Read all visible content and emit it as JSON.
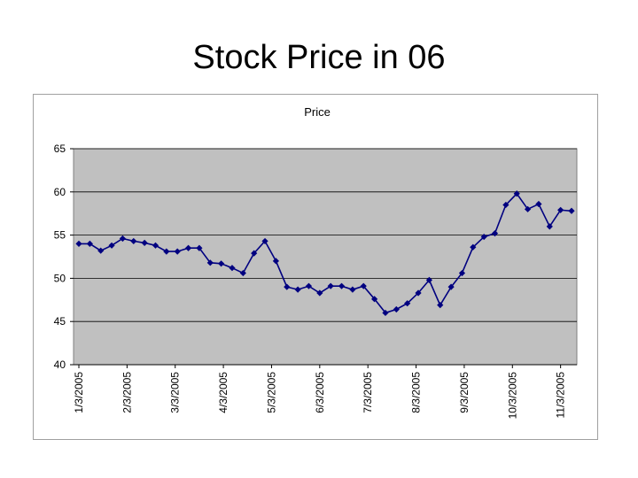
{
  "slide": {
    "title": "Stock Price in 06"
  },
  "colors": {
    "plot_bg": "#c0c0c0",
    "line": "#000080",
    "grid": "#000000"
  },
  "chart_data": {
    "type": "line",
    "title": "Price",
    "xlabel": "",
    "ylabel": "",
    "ylim": [
      40,
      65
    ],
    "yticks": [
      40,
      45,
      50,
      55,
      60,
      65
    ],
    "grid": true,
    "legend": "none",
    "xtick_labels": [
      "1/3/2005",
      "2/3/2005",
      "3/3/2005",
      "4/3/2005",
      "5/3/2005",
      "6/3/2005",
      "7/3/2005",
      "8/3/2005",
      "9/3/2005",
      "10/3/2005",
      "11/3/2005"
    ],
    "xtick_positions": [
      0,
      4.4,
      8.8,
      13.2,
      17.6,
      22,
      26.4,
      30.8,
      35.2,
      39.6,
      44
    ],
    "series": [
      {
        "values": [
          54,
          54,
          53.2,
          53.8,
          54.6,
          54.3,
          54.1,
          53.8,
          53.1,
          53.1,
          53.5,
          53.5,
          51.8,
          51.7,
          51.2,
          50.6,
          52.9,
          54.3,
          52,
          49,
          48.7,
          49.1,
          48.3,
          49.1,
          49.1,
          48.7,
          49.1,
          47.6,
          46,
          46.4,
          47.1,
          48.3,
          49.8,
          46.9,
          49,
          50.6,
          53.6,
          54.8,
          55.2,
          58.5,
          59.8,
          58,
          58.6,
          56,
          57.9,
          57.8
        ]
      }
    ]
  }
}
